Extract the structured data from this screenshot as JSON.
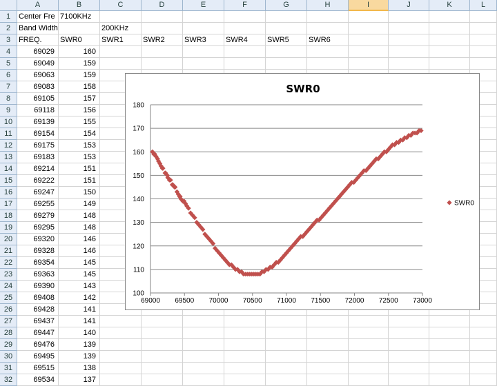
{
  "columns": [
    "A",
    "B",
    "C",
    "D",
    "E",
    "F",
    "G",
    "H",
    "I",
    "J",
    "K",
    "L"
  ],
  "selected_column": "I",
  "rows": [
    {
      "n": "1",
      "a": "Center Fre",
      "b": "7100KHz",
      "c": ""
    },
    {
      "n": "2",
      "a": "Band Width",
      "b": "",
      "c": "200KHz"
    },
    {
      "n": "3",
      "a": "FREQ.",
      "b": "SWR0",
      "c": "SWR1",
      "d": "SWR2",
      "e": "SWR3",
      "f": "SWR4",
      "g": "SWR5",
      "h": "SWR6"
    },
    {
      "n": "4",
      "a": "69029",
      "b": "160"
    },
    {
      "n": "5",
      "a": "69049",
      "b": "159"
    },
    {
      "n": "6",
      "a": "69063",
      "b": "159"
    },
    {
      "n": "7",
      "a": "69083",
      "b": "158"
    },
    {
      "n": "8",
      "a": "69105",
      "b": "157"
    },
    {
      "n": "9",
      "a": "69118",
      "b": "156"
    },
    {
      "n": "10",
      "a": "69139",
      "b": "155"
    },
    {
      "n": "11",
      "a": "69154",
      "b": "154"
    },
    {
      "n": "12",
      "a": "69175",
      "b": "153"
    },
    {
      "n": "13",
      "a": "69183",
      "b": "153"
    },
    {
      "n": "14",
      "a": "69214",
      "b": "151"
    },
    {
      "n": "15",
      "a": "69222",
      "b": "151"
    },
    {
      "n": "16",
      "a": "69247",
      "b": "150"
    },
    {
      "n": "17",
      "a": "69255",
      "b": "149"
    },
    {
      "n": "18",
      "a": "69279",
      "b": "148"
    },
    {
      "n": "19",
      "a": "69295",
      "b": "148"
    },
    {
      "n": "20",
      "a": "69320",
      "b": "146"
    },
    {
      "n": "21",
      "a": "69328",
      "b": "146"
    },
    {
      "n": "22",
      "a": "69354",
      "b": "145"
    },
    {
      "n": "23",
      "a": "69363",
      "b": "145"
    },
    {
      "n": "24",
      "a": "69390",
      "b": "143"
    },
    {
      "n": "25",
      "a": "69408",
      "b": "142"
    },
    {
      "n": "26",
      "a": "69428",
      "b": "141"
    },
    {
      "n": "27",
      "a": "69437",
      "b": "141"
    },
    {
      "n": "28",
      "a": "69447",
      "b": "140"
    },
    {
      "n": "29",
      "a": "69476",
      "b": "139"
    },
    {
      "n": "30",
      "a": "69495",
      "b": "139"
    },
    {
      "n": "31",
      "a": "69515",
      "b": "138"
    },
    {
      "n": "32",
      "a": "69534",
      "b": "137"
    }
  ],
  "chart_data": {
    "type": "scatter",
    "title": "SWR0",
    "legend": "SWR0",
    "legend_position": "right",
    "marker_color": "#c0504d",
    "xlim": [
      69000,
      73000
    ],
    "ylim": [
      100,
      180
    ],
    "xticks": [
      "69000",
      "69500",
      "70000",
      "70500",
      "71000",
      "71500",
      "72000",
      "72500",
      "73000"
    ],
    "yticks": [
      "100",
      "110",
      "120",
      "130",
      "140",
      "150",
      "160",
      "170",
      "180"
    ],
    "grid": "horizontal",
    "x": [
      69029,
      69049,
      69063,
      69083,
      69105,
      69118,
      69139,
      69154,
      69175,
      69183,
      69214,
      69222,
      69247,
      69255,
      69279,
      69295,
      69320,
      69328,
      69354,
      69363,
      69390,
      69408,
      69428,
      69437,
      69447,
      69476,
      69495,
      69515,
      69534,
      69560,
      69590,
      69620,
      69650,
      69680,
      69710,
      69740,
      69770,
      69800,
      69830,
      69860,
      69890,
      69920,
      69950,
      69980,
      70010,
      70040,
      70070,
      70100,
      70130,
      70160,
      70190,
      70220,
      70250,
      70280,
      70310,
      70340,
      70370,
      70400,
      70430,
      70460,
      70490,
      70520,
      70550,
      70580,
      70610,
      70640,
      70670,
      70700,
      70730,
      70760,
      70790,
      70820,
      70850,
      70880,
      70910,
      70940,
      70970,
      71000,
      71030,
      71060,
      71090,
      71120,
      71150,
      71180,
      71210,
      71240,
      71270,
      71300,
      71330,
      71360,
      71390,
      71420,
      71450,
      71480,
      71510,
      71540,
      71570,
      71600,
      71630,
      71660,
      71690,
      71720,
      71750,
      71780,
      71810,
      71840,
      71870,
      71900,
      71930,
      71960,
      71990,
      72020,
      72050,
      72080,
      72110,
      72140,
      72170,
      72200,
      72230,
      72260,
      72290,
      72320,
      72350,
      72380,
      72410,
      72440,
      72470,
      72500,
      72530,
      72560,
      72590,
      72620,
      72650,
      72680,
      72710,
      72740,
      72770,
      72800,
      72830,
      72860,
      72890,
      72920,
      72950,
      72980
    ],
    "y": [
      160,
      159,
      159,
      158,
      157,
      156,
      155,
      154,
      153,
      153,
      151,
      151,
      150,
      149,
      148,
      148,
      146,
      146,
      145,
      145,
      143,
      142,
      141,
      141,
      140,
      139,
      139,
      138,
      137,
      136,
      134,
      133,
      132,
      130,
      129,
      128,
      127,
      125,
      124,
      123,
      122,
      121,
      119,
      118,
      117,
      116,
      115,
      114,
      113,
      112,
      112,
      111,
      110,
      110,
      109,
      109,
      108,
      108,
      108,
      108,
      108,
      108,
      108,
      108,
      108,
      109,
      109,
      110,
      110,
      111,
      111,
      112,
      113,
      113,
      114,
      115,
      116,
      117,
      118,
      119,
      120,
      121,
      122,
      123,
      124,
      124,
      125,
      126,
      127,
      128,
      129,
      130,
      131,
      131,
      132,
      133,
      134,
      135,
      136,
      137,
      138,
      139,
      140,
      141,
      142,
      143,
      144,
      145,
      146,
      147,
      147,
      148,
      149,
      150,
      151,
      152,
      152,
      153,
      154,
      155,
      156,
      157,
      157,
      158,
      159,
      160,
      160,
      161,
      162,
      163,
      163,
      164,
      164,
      165,
      165,
      166,
      166,
      167,
      167,
      168,
      168,
      168,
      169,
      169
    ]
  }
}
